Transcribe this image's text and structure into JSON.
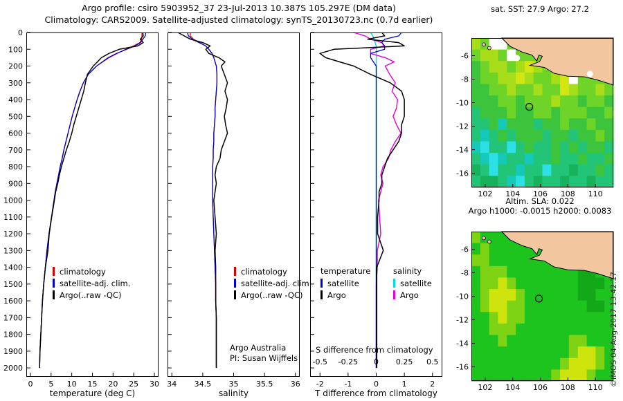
{
  "header": {
    "line1": "Argo profile: csiro 5903952_37 23-Jul-2013 10.387S 105.297E (DM data)",
    "line2": "Climatology: CARS2009. Satellite-adjusted climatology: synTS_20130723.nc (0.7d earlier)"
  },
  "watermark": "©IMOS 04-Aug-2017 13:42:17",
  "annotations": {
    "argo_australia": "Argo Australia",
    "pi": "PI: Susan Wijffels",
    "s_diff_label": "S difference from climatology"
  },
  "legends": {
    "profile": {
      "items": [
        {
          "label": "climatology",
          "color": "#d40000"
        },
        {
          "label": "satellite-adj. clim.",
          "color": "#0000d4"
        },
        {
          "label": "Argo(..raw -QC)",
          "color": "#000000"
        }
      ]
    },
    "diff": {
      "col1_header": "temperature",
      "col2_header": "salinity",
      "col1": [
        {
          "label": "satellite",
          "color": "#0000d4"
        },
        {
          "label": "Argo",
          "color": "#000000"
        }
      ],
      "col2": [
        {
          "label": "satellite",
          "color": "#00dede"
        },
        {
          "label": "Argo",
          "color": "#e000e0"
        }
      ]
    }
  },
  "chart_data": {
    "type": "line",
    "ylim": [
      0,
      2053
    ],
    "yticks": [
      0,
      100,
      200,
      300,
      400,
      500,
      600,
      700,
      800,
      900,
      1000,
      1100,
      1200,
      1300,
      1400,
      1500,
      1600,
      1700,
      1800,
      1900,
      2000
    ],
    "panels": [
      {
        "id": "temperature-profile",
        "xlabel": "temperature (deg C)",
        "xlim": [
          -1,
          31
        ],
        "xticks": [
          0,
          5,
          10,
          15,
          20,
          25,
          30
        ]
      },
      {
        "id": "salinity-profile",
        "xlabel": "salinity",
        "xlim": [
          33.93,
          36.07
        ],
        "xticks": [
          34,
          34.5,
          35,
          35.5,
          36
        ]
      },
      {
        "id": "difference-profile",
        "xlabel": "T difference from climatology",
        "xlim": [
          -2.35,
          2.35
        ],
        "xticks": [
          -2,
          -1,
          0,
          1,
          2
        ],
        "s_scale": 4,
        "s_tick_positions": [
          -2,
          -1,
          0,
          1,
          2
        ],
        "s_tick_labels": [
          "-0.5",
          "-0.25",
          "0",
          "0.25",
          "0.5"
        ]
      }
    ],
    "depth": [
      0,
      20,
      40,
      60,
      80,
      100,
      125,
      150,
      175,
      200,
      250,
      300,
      350,
      400,
      450,
      500,
      550,
      600,
      650,
      700,
      750,
      800,
      850,
      900,
      950,
      1000,
      1100,
      1200,
      1300,
      1400,
      1500,
      1600,
      1700,
      1800,
      1900,
      2000
    ],
    "series": {
      "temp_climatology": [
        27.0,
        27.0,
        26.9,
        26.5,
        25.0,
        23.0,
        21.0,
        19.0,
        17.5,
        16.0,
        14.0,
        12.8,
        12.0,
        11.3,
        10.7,
        10.1,
        9.6,
        9.1,
        8.6,
        8.1,
        7.7,
        7.2,
        6.8,
        6.4,
        6.0,
        5.7,
        5.1,
        4.5,
        4.0,
        3.6,
        3.2,
        2.9,
        2.7,
        2.5,
        2.3,
        2.2
      ],
      "temp_satellite": [
        27.9,
        27.8,
        27.2,
        26.7,
        25.3,
        23.3,
        20.8,
        18.8,
        17.4,
        16.0,
        14.0,
        12.8,
        12.0,
        11.3,
        10.7,
        10.1,
        9.6,
        9.1,
        8.6,
        8.1,
        7.7,
        7.2,
        6.8,
        6.4,
        6.0,
        5.7,
        5.1,
        4.5,
        4.0,
        3.6,
        3.2,
        2.9,
        2.7,
        2.5,
        2.3,
        2.2
      ],
      "temp_argo": [
        27.2,
        27.3,
        26.6,
        27.3,
        26.0,
        21.5,
        19.0,
        17.2,
        16.2,
        15.2,
        13.8,
        13.3,
        12.9,
        12.3,
        11.7,
        11.1,
        10.5,
        10.0,
        9.4,
        8.7,
        8.1,
        7.5,
        7.0,
        6.6,
        6.1,
        5.8,
        5.15,
        4.55,
        4.25,
        3.62,
        3.22,
        2.92,
        2.72,
        2.52,
        2.32,
        2.22
      ],
      "sal_climatology": [
        34.3,
        34.3,
        34.35,
        34.45,
        34.55,
        34.6,
        34.65,
        34.68,
        34.7,
        34.72,
        34.73,
        34.73,
        34.72,
        34.71,
        34.7,
        34.7,
        34.69,
        34.68,
        34.68,
        34.67,
        34.67,
        34.66,
        34.66,
        34.66,
        34.66,
        34.66,
        34.67,
        34.68,
        34.69,
        34.7,
        34.71,
        34.71,
        34.72,
        34.72,
        34.72,
        34.72
      ],
      "sal_satellite": [
        34.25,
        34.27,
        34.33,
        34.44,
        34.55,
        34.6,
        34.65,
        34.68,
        34.7,
        34.72,
        34.73,
        34.73,
        34.72,
        34.71,
        34.7,
        34.7,
        34.69,
        34.68,
        34.68,
        34.67,
        34.67,
        34.66,
        34.66,
        34.66,
        34.66,
        34.66,
        34.67,
        34.68,
        34.69,
        34.7,
        34.71,
        34.71,
        34.72,
        34.72,
        34.72,
        34.72
      ],
      "sal_argo": [
        34.1,
        34.2,
        34.3,
        34.5,
        34.62,
        34.55,
        34.6,
        34.76,
        34.86,
        34.8,
        34.85,
        34.9,
        34.86,
        34.9,
        34.88,
        34.85,
        34.87,
        34.9,
        34.85,
        34.8,
        34.78,
        34.72,
        34.7,
        34.72,
        34.7,
        34.68,
        34.7,
        34.72,
        34.7,
        34.71,
        34.71,
        34.71,
        34.72,
        34.72,
        34.72,
        34.72
      ]
    },
    "colors": {
      "climatology": "#d40000",
      "satellite": "#0000d4",
      "argo": "#000000",
      "sal_satellite_diff": "#00dede",
      "sal_argo_diff": "#e000e0"
    },
    "maps": [
      {
        "name": "sst-map",
        "title": "sat. SST: 27.9 Argo: 27.2",
        "lon_range": [
          101,
          111.3
        ],
        "lat_range": [
          -4.5,
          -17.2
        ],
        "lon_ticks": [
          102,
          104,
          106,
          108,
          110
        ],
        "lat_ticks": [
          -6,
          -8,
          -10,
          -12,
          -14,
          -16
        ],
        "marker": [
          105.2,
          -10.35
        ],
        "palette": {
          "L": "#f2c69e",
          "W": "#ffffff",
          "a": "#3cc53c",
          "b": "#6fd428",
          "c": "#a8de19",
          "d": "#d4e611",
          "e": "#22c477",
          "f": "#14c9b8",
          "g": "#2ce0e6",
          "h": "#16b35c"
        },
        "grid": [
          "cbWWbbbbbbbbbbbb",
          "bccbWbbbbbbbbbbb",
          "abccbcdcbbbbbbbb",
          "abbccdcbbcdWbbbb",
          "aabbcbbcbbdcbbcb",
          "aaabbabbbcbbabba",
          "eaaabaabbabbbaab",
          "eeafaaaeaabaabaa",
          "efeaeaaaeaaeaaba",
          "fgeegeaeeaeaeaae",
          "efgfeefeeaeeaeea",
          "hegeefeegeeheeae",
          "ehhefgeheeheehee"
        ],
        "land": [
          [
            103.2,
            -4.5
          ],
          [
            103.8,
            -5.2
          ],
          [
            104.7,
            -5.7
          ],
          [
            105.4,
            -5.95
          ],
          [
            105.75,
            -6.45
          ],
          [
            105.9,
            -5.95
          ],
          [
            106.15,
            -6.05
          ],
          [
            105.95,
            -6.5
          ],
          [
            105.25,
            -6.82
          ],
          [
            106.3,
            -7.0
          ],
          [
            107.0,
            -7.5
          ],
          [
            108.0,
            -7.75
          ],
          [
            109.2,
            -7.8
          ],
          [
            110.1,
            -8.05
          ],
          [
            111.3,
            -8.5
          ],
          [
            111.3,
            -4.5
          ]
        ],
        "islands": [
          [
            102.3,
            -5.35
          ],
          [
            101.9,
            -5.05
          ]
        ],
        "white_patches": [
          [
            109.6,
            -7.55
          ],
          [
            104.3,
            -6.2
          ]
        ]
      },
      {
        "name": "sla-map",
        "title": "Altim. SLA: 0.022",
        "title2": "Argo h1000: -0.0015 h2000: 0.0083",
        "lon_range": [
          101,
          111.3
        ],
        "lat_range": [
          -4.5,
          -17.2
        ],
        "lon_ticks": [
          102,
          104,
          106,
          108,
          110
        ],
        "lat_ticks": [
          -6,
          -8,
          -10,
          -12,
          -14,
          -16
        ],
        "marker": [
          105.9,
          -10.2
        ],
        "palette": {
          "L": "#f2c69e",
          "1": "#1ec41e",
          "2": "#7dd314",
          "3": "#cfe30c",
          "4": "#12a818"
        },
        "grid": [
          "2111111111111111",
          "1211111111111111",
          "2211111111111111",
          "1222111111114411",
          "1223211111114441",
          "1233321111114411",
          "1233221111111441",
          "1123221111111111",
          "1122211111111111",
          "1112111111122111",
          "1111111111123321",
          "1111111111233321",
          "1111111112333211"
        ],
        "land": [
          [
            103.2,
            -4.5
          ],
          [
            103.8,
            -5.2
          ],
          [
            104.7,
            -5.7
          ],
          [
            105.4,
            -5.95
          ],
          [
            105.75,
            -6.45
          ],
          [
            105.9,
            -5.95
          ],
          [
            106.15,
            -6.05
          ],
          [
            105.95,
            -6.5
          ],
          [
            105.25,
            -6.82
          ],
          [
            106.3,
            -7.0
          ],
          [
            107.0,
            -7.5
          ],
          [
            108.0,
            -7.75
          ],
          [
            109.2,
            -7.8
          ],
          [
            110.1,
            -8.05
          ],
          [
            111.3,
            -8.5
          ],
          [
            111.3,
            -4.5
          ]
        ],
        "islands": [
          [
            102.3,
            -5.35
          ],
          [
            101.9,
            -5.05
          ]
        ],
        "white_patches": []
      }
    ]
  }
}
